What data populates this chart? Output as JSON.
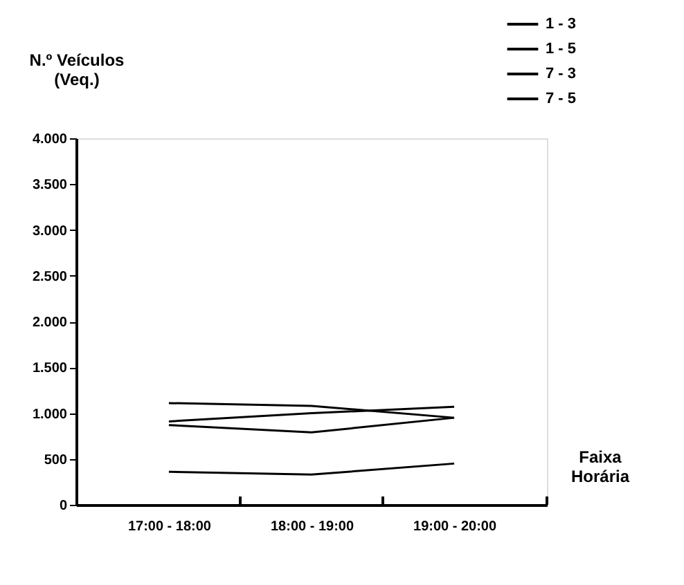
{
  "chart_data": {
    "type": "line",
    "xlabel": "Faixa Horária",
    "ylabel": "N.º Veículos (Veq.)",
    "categories": [
      "17:00 - 18:00",
      "18:00 - 19:00",
      "19:00 - 20:00"
    ],
    "series": [
      {
        "name": "1 - 3",
        "color": "#000000",
        "values": [
          1110,
          1080,
          950
        ]
      },
      {
        "name": "1 - 5",
        "color": "#000000",
        "values": [
          910,
          1000,
          1070
        ]
      },
      {
        "name": "7 - 3",
        "color": "#000000",
        "values": [
          870,
          790,
          950
        ]
      },
      {
        "name": "7 - 5",
        "color": "#000000",
        "values": [
          360,
          330,
          450
        ]
      }
    ],
    "ylim": [
      0,
      4000
    ],
    "yticks": [
      {
        "value": 0,
        "label": "0"
      },
      {
        "value": 500,
        "label": "500"
      },
      {
        "value": 1000,
        "label": "1.000"
      },
      {
        "value": 1500,
        "label": "1.500"
      },
      {
        "value": 2000,
        "label": "2.000"
      },
      {
        "value": 2500,
        "label": "2.500"
      },
      {
        "value": 3000,
        "label": "3.000"
      },
      {
        "value": 3500,
        "label": "3.500"
      },
      {
        "value": 4000,
        "label": "4.000"
      }
    ],
    "grid": false,
    "legend": "top right",
    "marker": "none",
    "line_style": "solid"
  }
}
